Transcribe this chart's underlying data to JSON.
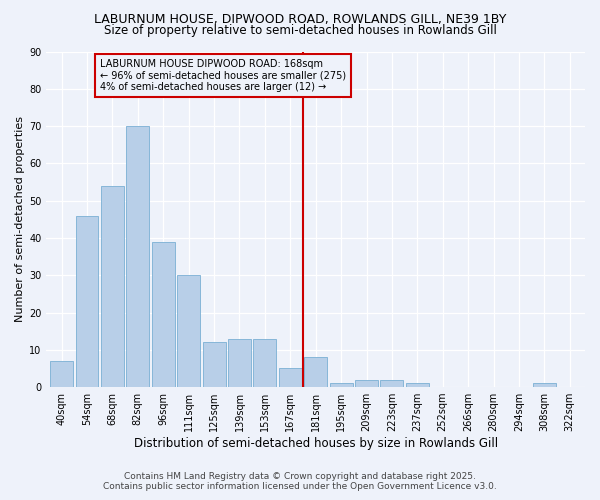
{
  "title1": "LABURNUM HOUSE, DIPWOOD ROAD, ROWLANDS GILL, NE39 1BY",
  "title2": "Size of property relative to semi-detached houses in Rowlands Gill",
  "xlabel": "Distribution of semi-detached houses by size in Rowlands Gill",
  "ylabel": "Number of semi-detached properties",
  "bar_labels": [
    "40sqm",
    "54sqm",
    "68sqm",
    "82sqm",
    "96sqm",
    "111sqm",
    "125sqm",
    "139sqm",
    "153sqm",
    "167sqm",
    "181sqm",
    "195sqm",
    "209sqm",
    "223sqm",
    "237sqm",
    "252sqm",
    "266sqm",
    "280sqm",
    "294sqm",
    "308sqm",
    "322sqm"
  ],
  "bar_values": [
    7,
    46,
    54,
    70,
    39,
    30,
    12,
    13,
    13,
    5,
    8,
    1,
    2,
    2,
    1,
    0,
    0,
    0,
    0,
    1,
    0
  ],
  "bar_color": "#b8cfe8",
  "bar_edge_color": "#7aafd4",
  "vline_color": "#cc0000",
  "annotation_lines": [
    "LABURNUM HOUSE DIPWOOD ROAD: 168sqm",
    "← 96% of semi-detached houses are smaller (275)",
    "4% of semi-detached houses are larger (12) →"
  ],
  "annotation_box_color": "#cc0000",
  "annotation_text_color": "#000000",
  "ylim": [
    0,
    90
  ],
  "yticks": [
    0,
    10,
    20,
    30,
    40,
    50,
    60,
    70,
    80,
    90
  ],
  "background_color": "#eef2fa",
  "footer_line1": "Contains HM Land Registry data © Crown copyright and database right 2025.",
  "footer_line2": "Contains public sector information licensed under the Open Government Licence v3.0.",
  "title_fontsize": 9,
  "subtitle_fontsize": 8.5,
  "xlabel_fontsize": 8.5,
  "ylabel_fontsize": 8,
  "tick_fontsize": 7,
  "footer_fontsize": 6.5
}
